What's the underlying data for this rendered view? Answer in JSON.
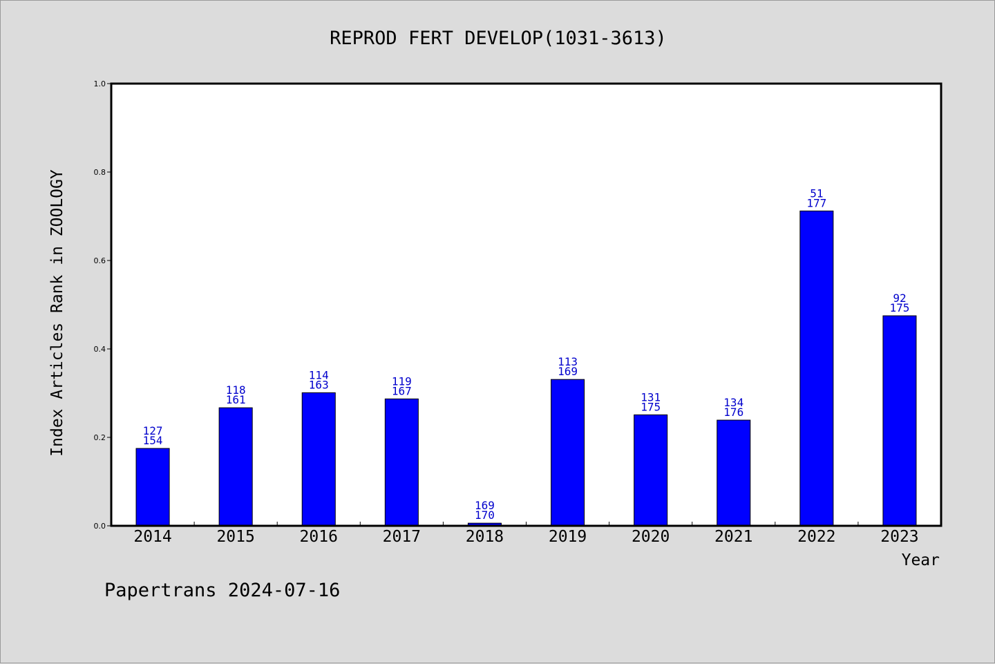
{
  "chart_data": {
    "type": "bar",
    "title": "REPROD FERT DEVELOP(1031-3613)",
    "xlabel": "Year",
    "ylabel": "Index Articles Rank in ZOOLOGY",
    "ylim": [
      0,
      1.0
    ],
    "yticks": [
      "0.0",
      "0.2",
      "0.4",
      "0.6",
      "0.8",
      "1.0"
    ],
    "categories": [
      "2014",
      "2015",
      "2016",
      "2017",
      "2018",
      "2019",
      "2020",
      "2021",
      "2022",
      "2023"
    ],
    "values": [
      0.175,
      0.267,
      0.301,
      0.287,
      0.006,
      0.331,
      0.251,
      0.239,
      0.712,
      0.475
    ],
    "labels_top": [
      "127",
      "118",
      "114",
      "119",
      "169",
      "113",
      "131",
      "134",
      "51",
      "92"
    ],
    "labels_bottom": [
      "154",
      "161",
      "163",
      "167",
      "170",
      "169",
      "175",
      "176",
      "177",
      "175"
    ],
    "bar_color": "#0000ff",
    "label_color": "#0000cc",
    "grid": false
  },
  "footer": "Papertrans 2024-07-16",
  "colors": {
    "background": "#dcdcdc",
    "plot_background": "#ffffff"
  }
}
